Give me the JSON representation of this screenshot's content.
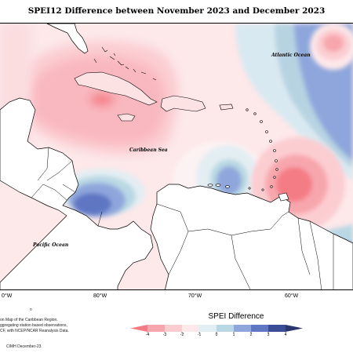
{
  "title": "SPEI12 Difference between November 2023 and December 2023",
  "labels": {
    "atlantic": "Atlantic Ocean",
    "caribbean": "Caribbean Sea",
    "pacific": "Pacific Ocean"
  },
  "longitudes": [
    "0°W",
    "80°W",
    "70°W",
    "60°W"
  ],
  "footnote": {
    "marker": "¤",
    "lines": [
      "on Map of the Caribbean Region.",
      "ggregating station based observations,",
      "CF, with NCEP/NCAR Reanalysis Data."
    ],
    "credit": "CIMH December-23"
  },
  "colorbar": {
    "title": "SPEI Difference",
    "ticks": [
      "-4",
      "-3",
      "-2",
      "-1",
      "0",
      "1",
      "2",
      "3",
      "4"
    ],
    "colors": [
      "#f47b85",
      "#f8a6ad",
      "#fbcdd1",
      "#fde8ea",
      "#e1eef3",
      "#b9d8e3",
      "#8fa6dc",
      "#5f76c3",
      "#3b4c97",
      "#293670"
    ]
  }
}
